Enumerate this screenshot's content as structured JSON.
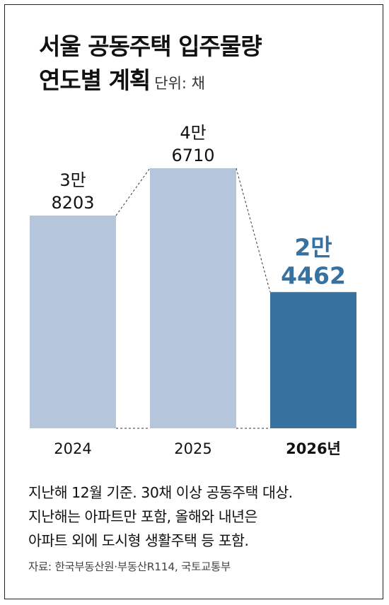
{
  "title": {
    "line1": "서울 공동주택 입주물량",
    "line2": "연도별 계획",
    "unit": "단위: 채"
  },
  "chart_data": {
    "type": "bar",
    "categories": [
      "2024",
      "2025",
      "2026년"
    ],
    "values": [
      38203,
      46710,
      24462
    ],
    "value_labels": [
      {
        "line1": "3만",
        "line2": "8203"
      },
      {
        "line1": "4만",
        "line2": "6710"
      },
      {
        "line1": "2만",
        "line2": "4462"
      }
    ],
    "highlight_index": 2,
    "ylim": [
      0,
      46710
    ],
    "grid": false,
    "colors": {
      "default": "#b4c5dc",
      "highlight": "#3771a0"
    }
  },
  "footnote": {
    "lines": [
      "지난해 12월 기준. 30채 이상 공동주택 대상.",
      "지난해는 아파트만 포함, 올해와 내년은",
      "아파트 외에 도시형 생활주택 등 포함."
    ]
  },
  "source": "자료: 한국부동산원·부동산R114, 국토교통부"
}
